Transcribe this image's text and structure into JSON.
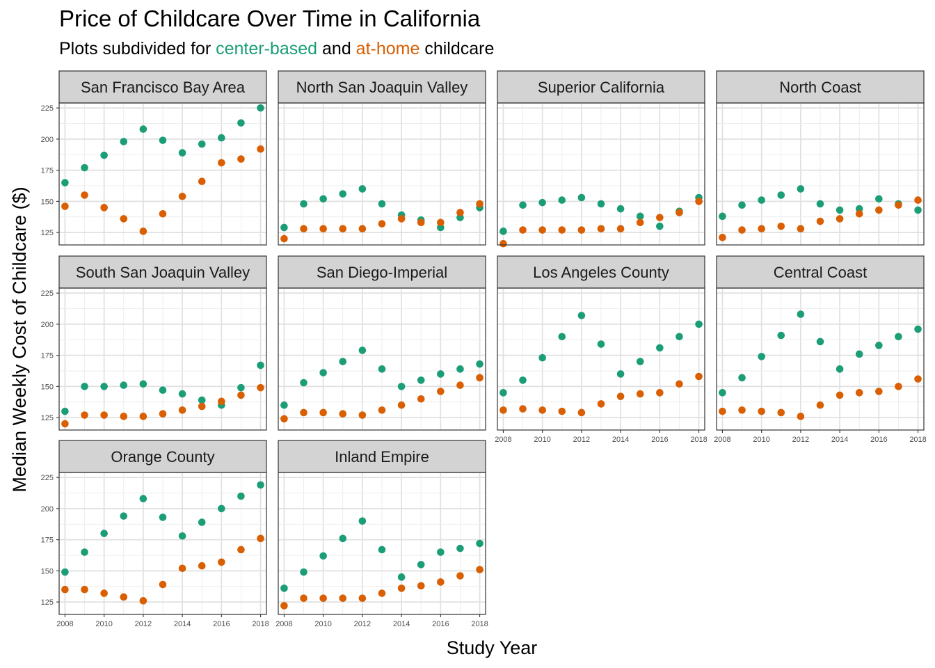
{
  "title": "Price of Childcare Over Time in California",
  "subtitle": {
    "prefix": "Plots subdivided for ",
    "center": "center-based",
    "mid": " and ",
    "home": "at-home",
    "suffix": " childcare"
  },
  "colors": {
    "center": "#1b9e77",
    "home": "#d95f02"
  },
  "chart_data": {
    "type": "scatter",
    "xlabel": "Study Year",
    "ylabel": "Median Weekly Cost of Childcare ($)",
    "x": [
      2008,
      2009,
      2010,
      2011,
      2012,
      2013,
      2014,
      2015,
      2016,
      2017,
      2018
    ],
    "xticks": [
      2008,
      2010,
      2012,
      2014,
      2016,
      2018
    ],
    "yticks": [
      125,
      150,
      175,
      200,
      225
    ],
    "xlim": [
      2007.7,
      2018.3
    ],
    "ylim": [
      115,
      229
    ],
    "grid": true,
    "panels": [
      {
        "name": "San Francisco Bay Area",
        "center": [
          165,
          177,
          187,
          198,
          208,
          199,
          189,
          196,
          201,
          213,
          225
        ],
        "home": [
          146,
          155,
          145,
          136,
          126,
          140,
          154,
          166,
          181,
          184,
          192
        ]
      },
      {
        "name": "North San Joaquin Valley",
        "center": [
          129,
          148,
          152,
          156,
          160,
          148,
          139,
          135,
          129,
          137,
          145
        ],
        "home": [
          120,
          128,
          128,
          128,
          128,
          132,
          136,
          133,
          133,
          141,
          148
        ]
      },
      {
        "name": "Superior California",
        "center": [
          126,
          147,
          149,
          151,
          153,
          148,
          144,
          138,
          130,
          142,
          153
        ],
        "home": [
          116,
          127,
          127,
          127,
          127,
          128,
          128,
          133,
          137,
          141,
          150
        ]
      },
      {
        "name": "North Coast",
        "center": [
          138,
          147,
          151,
          155,
          160,
          148,
          143,
          144,
          152,
          148,
          143
        ],
        "home": [
          121,
          127,
          128,
          130,
          128,
          134,
          136,
          140,
          143,
          147,
          151
        ]
      },
      {
        "name": "South San Joaquin Valley",
        "center": [
          130,
          150,
          150,
          151,
          152,
          147,
          144,
          139,
          135,
          149,
          167
        ],
        "home": [
          120,
          127,
          127,
          126,
          126,
          128,
          131,
          134,
          138,
          143,
          149
        ]
      },
      {
        "name": "San Diego-Imperial",
        "center": [
          135,
          153,
          161,
          170,
          179,
          164,
          150,
          155,
          160,
          164,
          168
        ],
        "home": [
          124,
          129,
          129,
          128,
          127,
          131,
          135,
          140,
          146,
          151,
          157
        ]
      },
      {
        "name": "Los Angeles County",
        "center": [
          145,
          155,
          173,
          190,
          207,
          184,
          160,
          170,
          181,
          190,
          200
        ],
        "home": [
          131,
          132,
          131,
          130,
          129,
          136,
          142,
          144,
          145,
          152,
          158
        ]
      },
      {
        "name": "Central Coast",
        "center": [
          145,
          157,
          174,
          191,
          208,
          186,
          164,
          176,
          183,
          190,
          196
        ],
        "home": [
          130,
          131,
          130,
          129,
          126,
          135,
          143,
          145,
          146,
          150,
          156
        ]
      },
      {
        "name": "Orange County",
        "center": [
          149,
          165,
          180,
          194,
          208,
          193,
          178,
          189,
          200,
          210,
          219
        ],
        "home": [
          135,
          135,
          132,
          129,
          126,
          139,
          152,
          154,
          157,
          167,
          176
        ]
      },
      {
        "name": "Inland Empire",
        "center": [
          136,
          149,
          162,
          176,
          190,
          167,
          145,
          155,
          165,
          168,
          172
        ],
        "home": [
          122,
          128,
          128,
          128,
          128,
          132,
          136,
          138,
          141,
          146,
          151
        ]
      }
    ]
  }
}
